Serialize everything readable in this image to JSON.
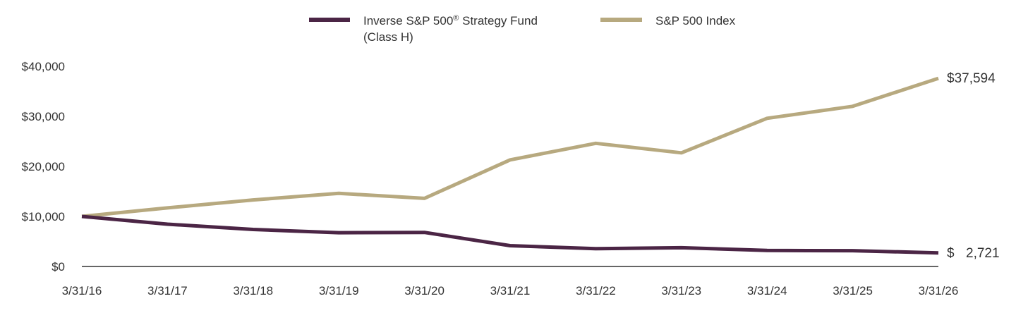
{
  "chart_data": {
    "type": "line",
    "title": "",
    "xlabel": "",
    "ylabel": "",
    "categories": [
      "3/31/16",
      "3/31/17",
      "3/31/18",
      "3/31/19",
      "3/31/20",
      "3/31/21",
      "3/31/22",
      "3/31/23",
      "3/31/24",
      "3/31/25",
      "3/31/26"
    ],
    "yticks": [
      0,
      10000,
      20000,
      30000,
      40000
    ],
    "ytick_labels": [
      "$0",
      "$10,000",
      "$20,000",
      "$30,000",
      "$40,000"
    ],
    "ylim": [
      0,
      42000
    ],
    "grid": false,
    "legend_position": "top",
    "series": [
      {
        "name_line1": "Inverse S&P 500",
        "name_sup": "®",
        "name_line1_rest": " Strategy Fund",
        "name_line2": "(Class H)",
        "color": "#4b2545",
        "values": [
          10000,
          8450,
          7400,
          6750,
          6800,
          4150,
          3550,
          3750,
          3200,
          3150,
          2721
        ],
        "end_label_currency": "$",
        "end_label_value": "2,721"
      },
      {
        "name": "S&P 500 Index",
        "color": "#b7a97f",
        "values": [
          10000,
          11700,
          13300,
          14600,
          13600,
          21300,
          24600,
          22700,
          29600,
          32000,
          37594
        ],
        "end_label": "$37,594"
      }
    ]
  }
}
